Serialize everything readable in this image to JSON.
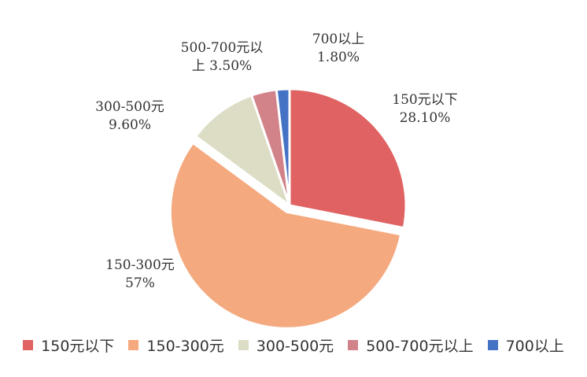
{
  "chart_data": {
    "type": "pie",
    "title": "",
    "legend_position": "bottom",
    "slices": [
      {
        "name": "150元以下",
        "value": 28.1,
        "label_lines": [
          "150元以下",
          "28.10%"
        ],
        "color": "#E06262"
      },
      {
        "name": "150-300元",
        "value": 57,
        "label_lines": [
          "150-300元",
          "57%"
        ],
        "color": "#F4A97F"
      },
      {
        "name": "300-500元",
        "value": 9.6,
        "label_lines": [
          "300-500元",
          "9.60%"
        ],
        "color": "#DCDDC4"
      },
      {
        "name": "500-700元以上",
        "value": 3.5,
        "label_lines": [
          "500-700元以",
          "上 3.50%"
        ],
        "color": "#D28389"
      },
      {
        "name": "700以上",
        "value": 1.8,
        "label_lines": [
          "700以上",
          "1.80%"
        ],
        "color": "#4472C4"
      }
    ]
  }
}
